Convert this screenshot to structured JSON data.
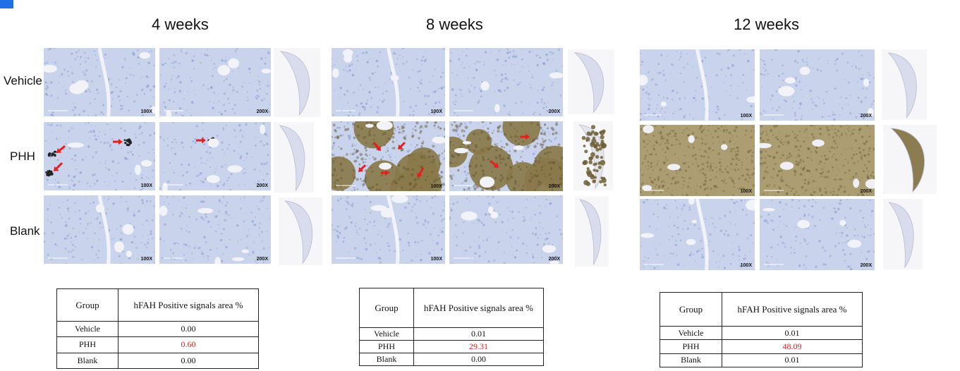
{
  "corner_marker": {
    "color": "#1f6fe5"
  },
  "weeks": [
    "4 weeks",
    "8 weeks",
    "12 weeks"
  ],
  "row_labels": [
    "Vehicle",
    "PHH",
    "Blank"
  ],
  "magnifications": [
    "100X",
    "200X"
  ],
  "stain_colors": {
    "tissue": "#c9d3ec",
    "nuclei": "#8e9fcf",
    "positive": "#8a7a4a",
    "arrow": "#e61e1e"
  },
  "tables": [
    {
      "header": [
        "Group",
        "hFAH Positive signals area %"
      ],
      "rows": [
        [
          "Vehicle",
          "0.00"
        ],
        [
          "PHH",
          "0.60"
        ],
        [
          "Blank",
          "0.00"
        ]
      ]
    },
    {
      "header": [
        "Group",
        "hFAH Positive signals area %"
      ],
      "rows": [
        [
          "Vehicle",
          "0.01"
        ],
        [
          "PHH",
          "29.31"
        ],
        [
          "Blank",
          "0.00"
        ]
      ]
    },
    {
      "header": [
        "Group",
        "hFAH Positive signals area %"
      ],
      "rows": [
        [
          "Vehicle",
          "0.01"
        ],
        [
          "PHH",
          "48.09"
        ],
        [
          "Blank",
          "0.01"
        ]
      ]
    }
  ]
}
